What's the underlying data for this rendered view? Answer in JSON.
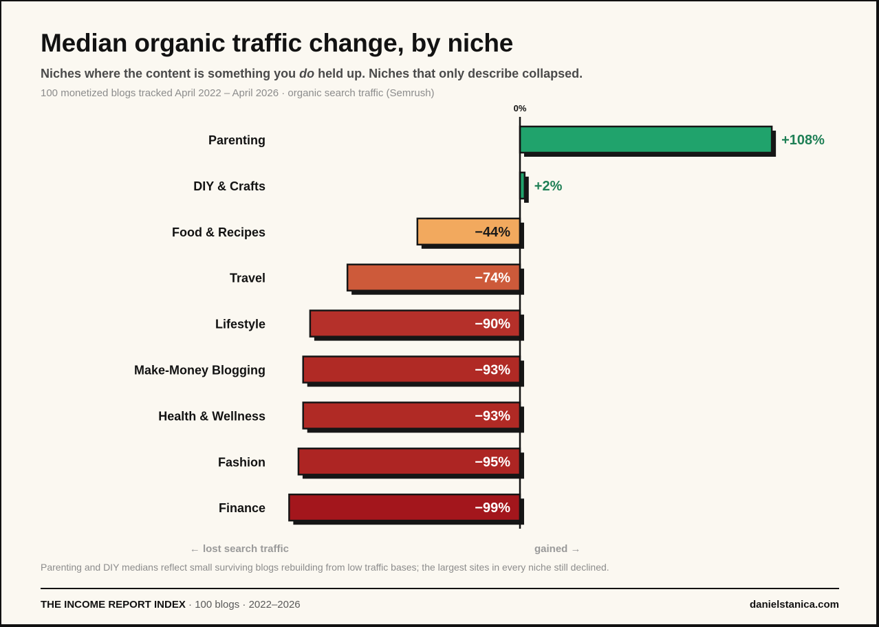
{
  "header": {
    "title": "Median organic traffic change, by niche",
    "subtitle_before": "Niches where the content is something you ",
    "subtitle_emphasis": "do",
    "subtitle_after": " held up. Niches that only describe collapsed.",
    "meta": "100 monetized blogs tracked April 2022 – April 2026 · organic search traffic (Semrush)"
  },
  "chart_data": {
    "type": "bar",
    "orientation": "horizontal",
    "zero_label": "0%",
    "categories": [
      "Parenting",
      "DIY & Crafts",
      "Food & Recipes",
      "Travel",
      "Lifestyle",
      "Make-Money Blogging",
      "Health & Wellness",
      "Fashion",
      "Finance"
    ],
    "values": [
      108,
      2,
      -44,
      -74,
      -90,
      -93,
      -93,
      -95,
      -99
    ],
    "value_labels": [
      "+108%",
      "+2%",
      "−44%",
      "−74%",
      "−90%",
      "−93%",
      "−93%",
      "−95%",
      "−99%"
    ],
    "colors": [
      "#20a36c",
      "#20a36c",
      "#f2a95e",
      "#cd5a3a",
      "#b5302a",
      "#b02a25",
      "#b02a25",
      "#ad2523",
      "#a3161c"
    ],
    "xlim": [
      -100,
      110
    ],
    "left_axis_label": "← lost search traffic",
    "right_axis_label": "gained →",
    "legend": "none",
    "grid": false
  },
  "colors": {
    "positive_label": "#1e7f55",
    "negative_label_dark": "#1a1a1a",
    "negative_label_light": "#ffffff"
  },
  "footnote": "Parenting and DIY medians reflect small surviving blogs rebuilding from low traffic bases; the largest sites in every niche still declined.",
  "footer": {
    "brand": "THE INCOME REPORT INDEX",
    "details": " · 100 blogs · 2022–2026",
    "site": "danielstanica.com"
  }
}
